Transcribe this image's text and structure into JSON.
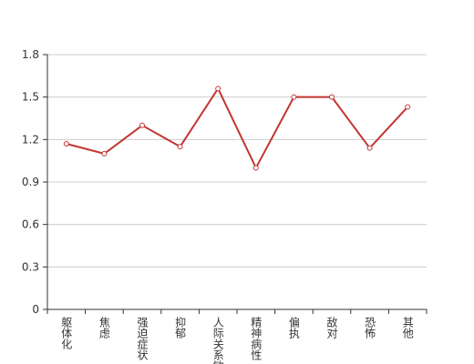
{
  "chart_data": {
    "type": "line",
    "categories": [
      "躯体化",
      "焦虑",
      "强迫症状",
      "抑郁",
      "人际关系敏感",
      "精神病性",
      "偏执",
      "敌对",
      "恐怖",
      "其他"
    ],
    "series": [
      {
        "color": "#c23531",
        "values": [
          1.17,
          1.1,
          1.3,
          1.15,
          1.56,
          1.0,
          1.5,
          1.5,
          1.14,
          1.43
        ]
      }
    ],
    "ylim": [
      0,
      1.8
    ],
    "yticks": [
      0,
      0.3,
      0.6,
      0.9,
      1.2,
      1.5,
      1.8
    ],
    "grid": true
  }
}
